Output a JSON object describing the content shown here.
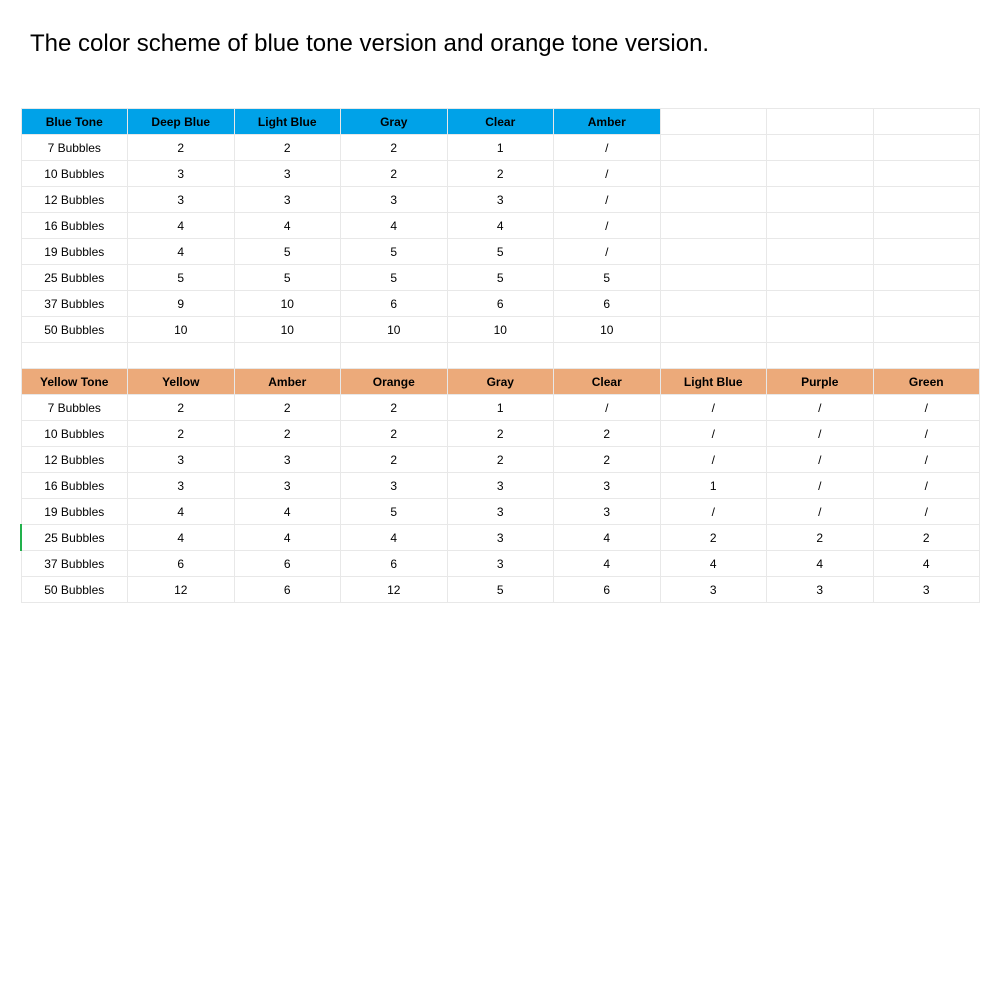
{
  "page": {
    "title": "The color scheme of blue tone version and orange tone version.",
    "background_color": "#ffffff",
    "text_color": "#000000",
    "border_color": "#e8e8e8",
    "title_fontsize": 24,
    "cell_fontsize": 12
  },
  "blue_table": {
    "header_bg": "#00a2e8",
    "columns": [
      "Blue Tone",
      "Deep Blue",
      "Light Blue",
      "Gray",
      "Clear",
      "Amber"
    ],
    "rows": [
      [
        "7 Bubbles",
        "2",
        "2",
        "2",
        "1",
        "/"
      ],
      [
        "10 Bubbles",
        "3",
        "3",
        "2",
        "2",
        "/"
      ],
      [
        "12 Bubbles",
        "3",
        "3",
        "3",
        "3",
        "/"
      ],
      [
        "16 Bubbles",
        "4",
        "4",
        "4",
        "4",
        "/"
      ],
      [
        "19 Bubbles",
        "4",
        "5",
        "5",
        "5",
        "/"
      ],
      [
        "25 Bubbles",
        "5",
        "5",
        "5",
        "5",
        "5"
      ],
      [
        "37 Bubbles",
        "9",
        "10",
        "6",
        "6",
        "6"
      ],
      [
        "50 Bubbles",
        "10",
        "10",
        "10",
        "10",
        "10"
      ]
    ],
    "extra_blank_cols": 3
  },
  "orange_table": {
    "header_bg": "#ecaa7a",
    "columns": [
      "Yellow Tone",
      "Yellow",
      "Amber",
      "Orange",
      "Gray",
      "Clear",
      "Light Blue",
      "Purple",
      "Green"
    ],
    "rows": [
      [
        "7 Bubbles",
        "2",
        "2",
        "2",
        "1",
        "/",
        "/",
        "/",
        "/"
      ],
      [
        "10 Bubbles",
        "2",
        "2",
        "2",
        "2",
        "2",
        "/",
        "/",
        "/"
      ],
      [
        "12 Bubbles",
        "3",
        "3",
        "2",
        "2",
        "2",
        "/",
        "/",
        "/"
      ],
      [
        "16 Bubbles",
        "3",
        "3",
        "3",
        "3",
        "3",
        "1",
        "/",
        "/"
      ],
      [
        "19 Bubbles",
        "4",
        "4",
        "5",
        "3",
        "3",
        "/",
        "/",
        "/"
      ],
      [
        "25 Bubbles",
        "4",
        "4",
        "4",
        "3",
        "4",
        "2",
        "2",
        "2"
      ],
      [
        "37 Bubbles",
        "6",
        "6",
        "6",
        "3",
        "4",
        "4",
        "4",
        "4"
      ],
      [
        "50 Bubbles",
        "12",
        "6",
        "12",
        "5",
        "6",
        "3",
        "3",
        "3"
      ]
    ],
    "green_edge_row_index": 5
  }
}
